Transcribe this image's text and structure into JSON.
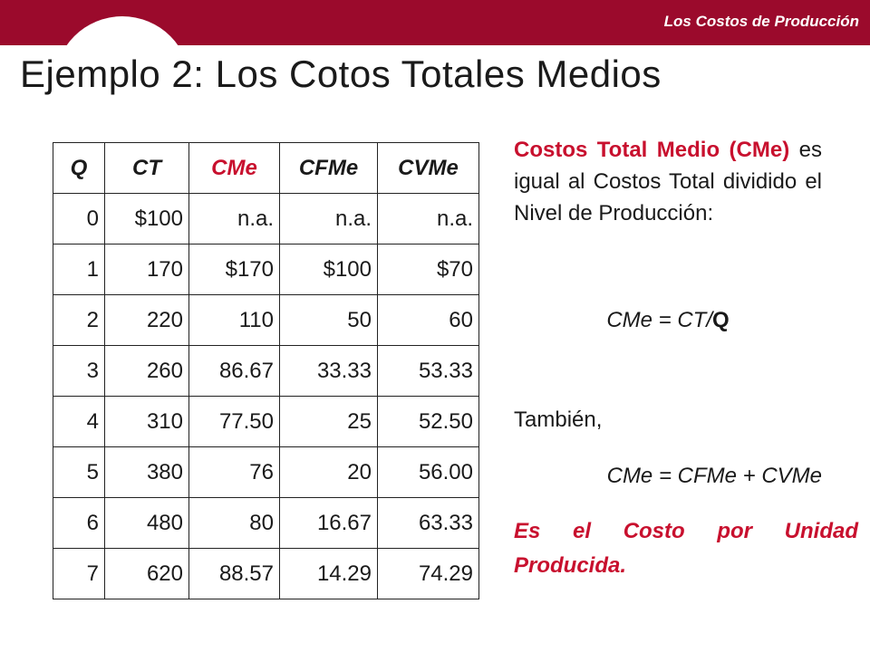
{
  "header": {
    "label": "Los Costos de Producción"
  },
  "title": "Ejemplo 2: Los Cotos Totales Medios",
  "table": {
    "headers": [
      "Q",
      "CT",
      "CMe",
      "CFMe",
      "CVMe"
    ],
    "rows": [
      [
        "0",
        "$100",
        "n.a.",
        "n.a.",
        "n.a."
      ],
      [
        "1",
        "170",
        "$170",
        "$100",
        "$70"
      ],
      [
        "2",
        "220",
        "110",
        "50",
        "60"
      ],
      [
        "3",
        "260",
        "86.67",
        "33.33",
        "53.33"
      ],
      [
        "4",
        "310",
        "77.50",
        "25",
        "52.50"
      ],
      [
        "5",
        "380",
        "76",
        "20",
        "56.00"
      ],
      [
        "6",
        "480",
        "80",
        "16.67",
        "63.33"
      ],
      [
        "7",
        "620",
        "88.57",
        "14.29",
        "74.29"
      ]
    ]
  },
  "explanation": {
    "lead": "Costos Total Medio (CMe)",
    "rest": " es igual al Costos Total dividido el Nivel de Producción:"
  },
  "formula1": {
    "prefix": "CMe = CT/",
    "bold": "Q"
  },
  "tambien": "También,",
  "formula2": "CMe = CFMe + CVMe",
  "conclusion": "Es el Costo por Unidad Producida.",
  "colors": {
    "brand": "#9b0a2c",
    "accent": "#c8102e"
  }
}
